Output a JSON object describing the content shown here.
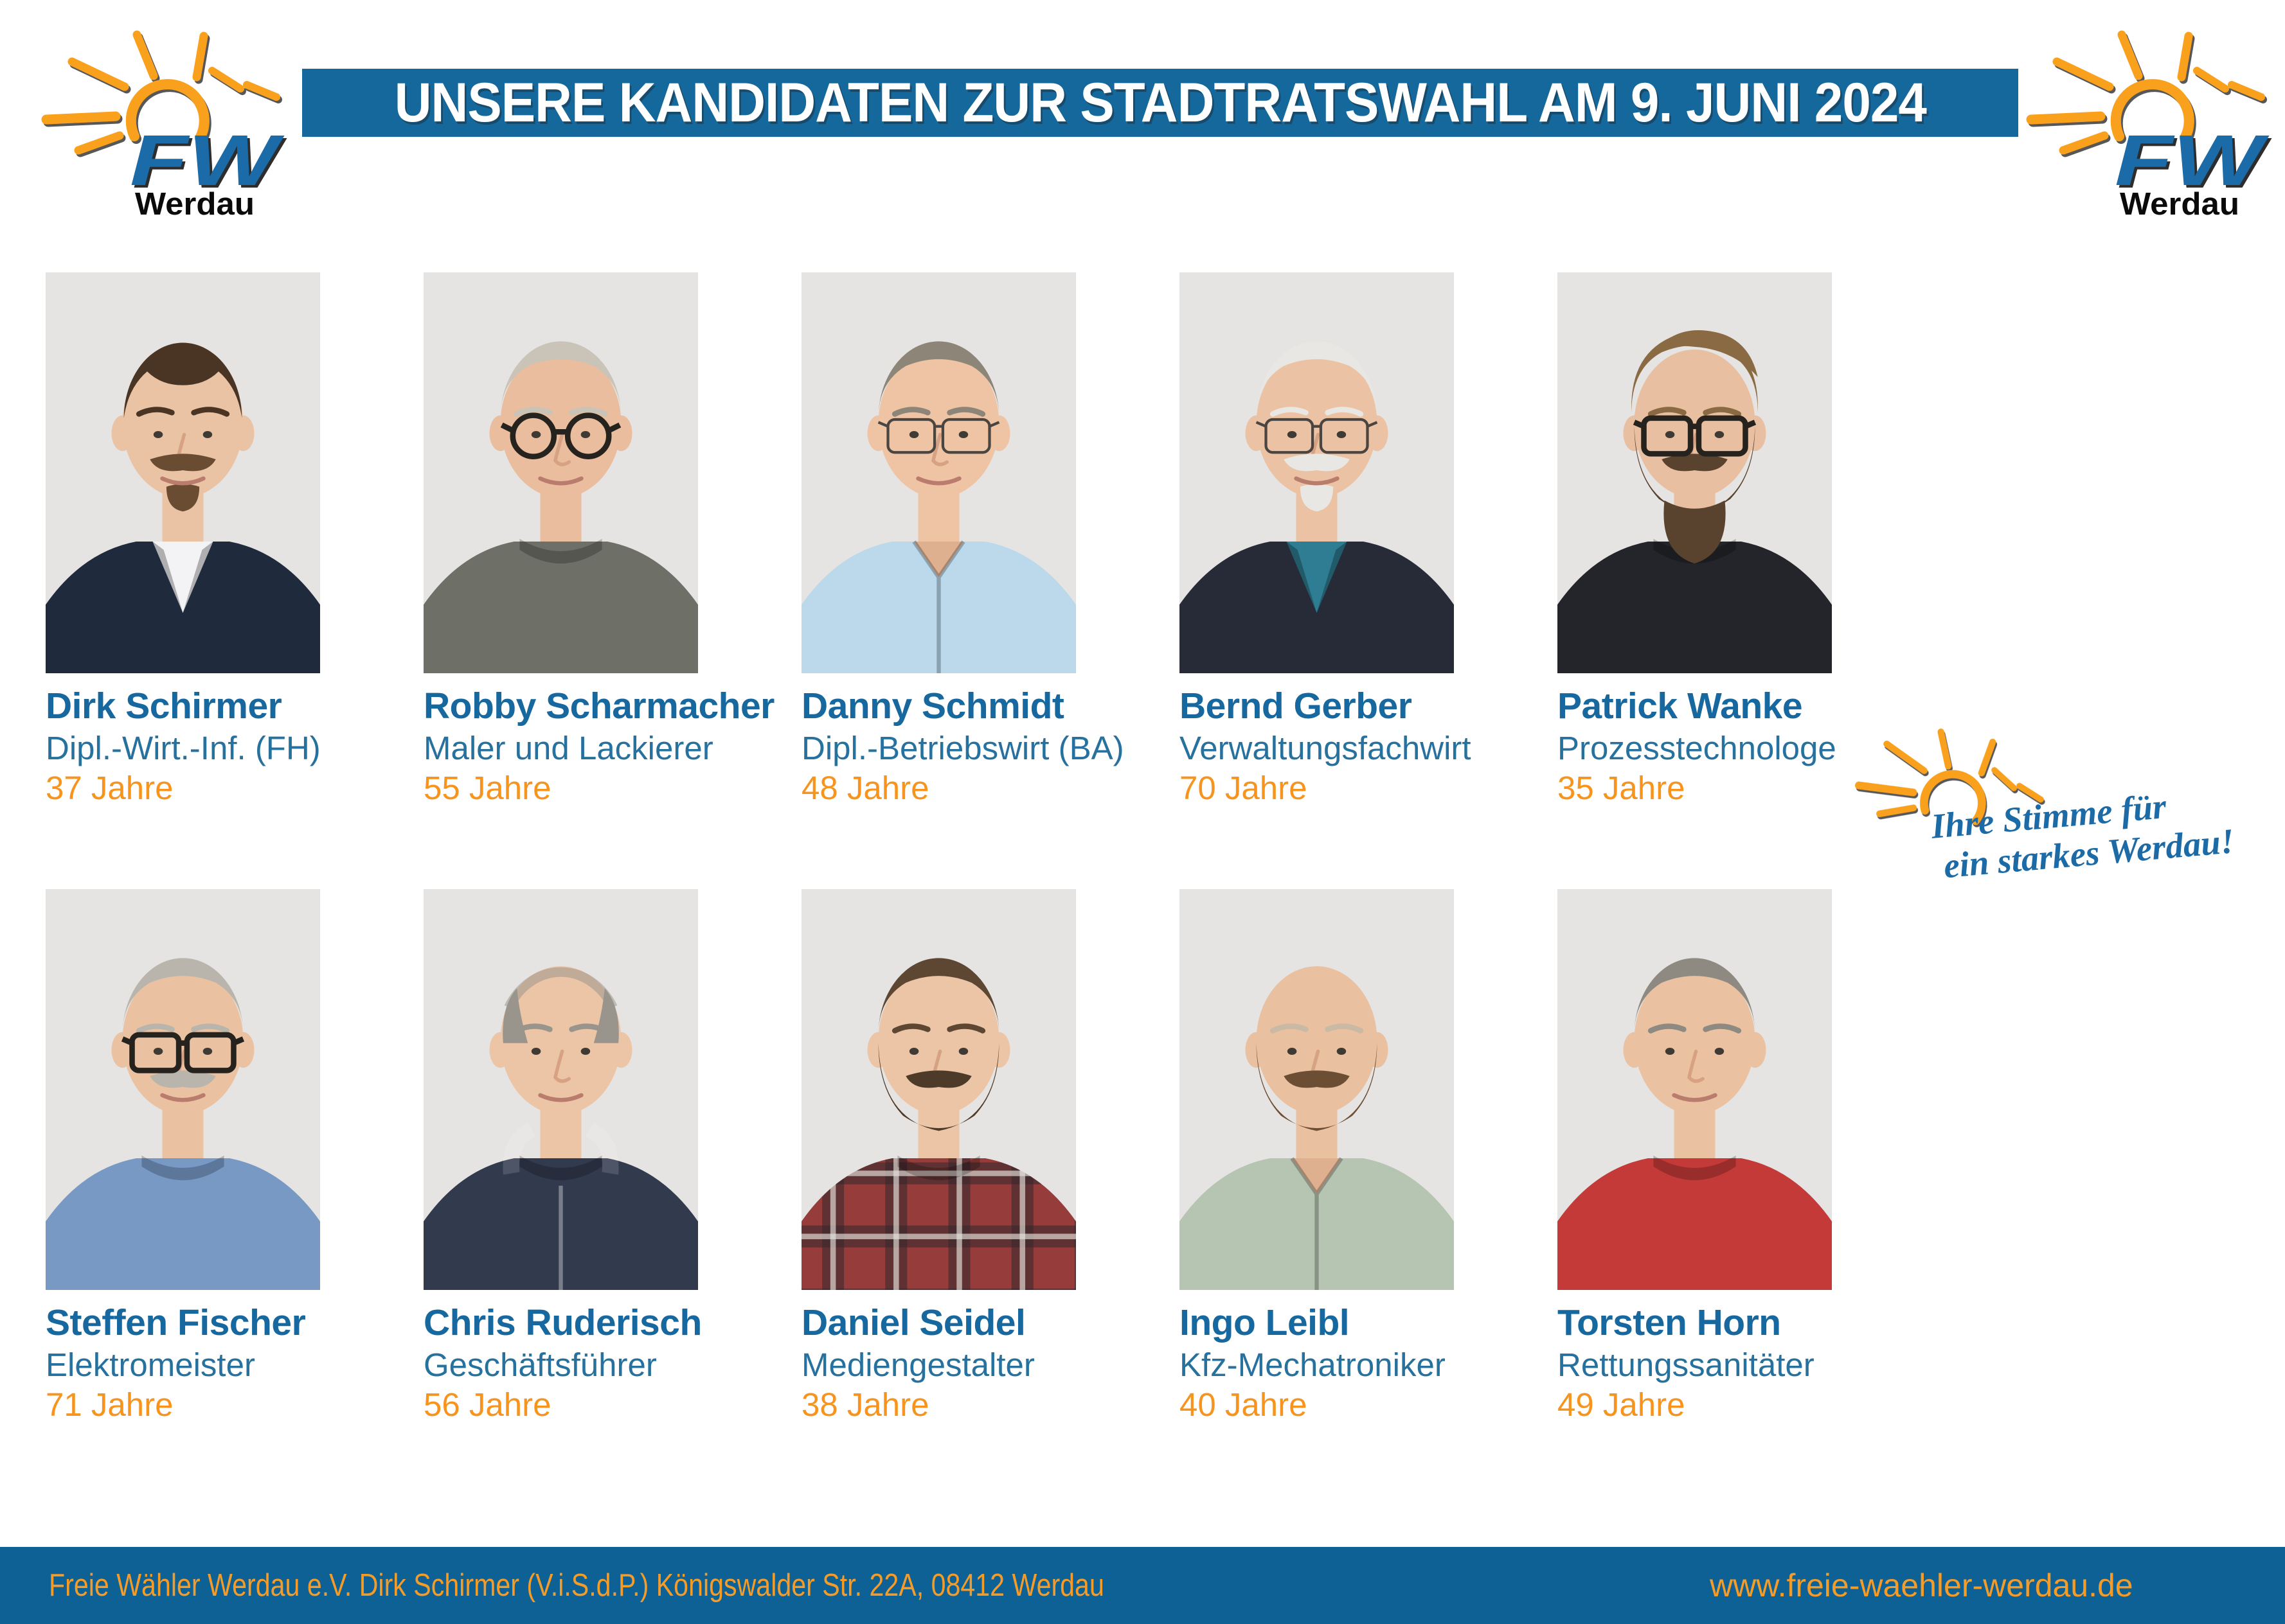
{
  "header": {
    "title": "UNSERE KANDIDATEN ZUR STADTRATSWAHL AM 9. JUNI 2024"
  },
  "logo": {
    "fw": "FW",
    "city": "Werdau",
    "icon": "sun-rays-icon"
  },
  "slogan": {
    "line1": "Ihre Stimme für",
    "line2": "ein starkes Werdau!"
  },
  "colors": {
    "banner_blue": "#15689c",
    "footer_blue": "#0d6195",
    "name_blue": "#17689f",
    "profession_blue": "#26719e",
    "accent_orange": "#f7941e",
    "sun_orange": "#f9a11b",
    "fw_logo_blue": "#1a6ba8",
    "photo_background": "#e6e4e2"
  },
  "candidates": [
    {
      "name": "Dirk Schirmer",
      "profession": "Dipl.-Wirt.-Inf. (FH)",
      "age": "37 Jahre",
      "photo": {
        "hair": "receding",
        "hairColor": "#4a3423",
        "beard": "goatee",
        "beardColor": "#6a4c33",
        "glasses": "none",
        "top": "blazer",
        "topColor": "#1f2a3d",
        "shirtColor": "#f3f3f5",
        "skin": "#eac3a4"
      }
    },
    {
      "name": "Robby Scharmacher",
      "profession": "Maler und Lackierer",
      "age": "55 Jahre",
      "photo": {
        "hair": "short",
        "hairColor": "#c9c3b8",
        "beard": "none",
        "beardColor": "#c9c3b8",
        "glasses": "round",
        "top": "crew",
        "topColor": "#6e6f66",
        "shirtColor": "#6e6f66",
        "skin": "#e9bd9d"
      }
    },
    {
      "name": "Danny Schmidt",
      "profession": "Dipl.-Betriebswirt (BA)",
      "age": "48 Jahre",
      "photo": {
        "hair": "short",
        "hairColor": "#8c8578",
        "beard": "none",
        "beardColor": "#8c8578",
        "glasses": "thin",
        "top": "shirt",
        "topColor": "#bcd9ec",
        "shirtColor": "#bcd9ec",
        "skin": "#eec4a4"
      }
    },
    {
      "name": "Bernd Gerber",
      "profession": "Verwaltungsfachwirt",
      "age": "70 Jahre",
      "photo": {
        "hair": "short",
        "hairColor": "#e9e7e3",
        "beard": "goatee",
        "beardColor": "#e9e7e3",
        "glasses": "thin",
        "top": "blazer",
        "topColor": "#272b38",
        "shirtColor": "#2e7d92",
        "skin": "#ebc3a4"
      }
    },
    {
      "name": "Patrick Wanke",
      "profession": "Prozesstechnologe",
      "age": "35 Jahre",
      "photo": {
        "hair": "quiff",
        "hairColor": "#8a6a42",
        "beard": "long",
        "beardColor": "#59422e",
        "glasses": "rect",
        "top": "crew",
        "topColor": "#23252a",
        "shirtColor": "#23252a",
        "skin": "#e8bfa0"
      }
    },
    {
      "name": "Steffen Fischer",
      "profession": "Elektromeister",
      "age": "71 Jahre",
      "photo": {
        "hair": "short",
        "hairColor": "#b9b5ac",
        "beard": "mustache",
        "beardColor": "#b9b5ac",
        "glasses": "rect",
        "top": "crew",
        "topColor": "#7799c4",
        "shirtColor": "#7799c4",
        "skin": "#eac2a2"
      }
    },
    {
      "name": "Chris Ruderisch",
      "profession": "Geschäftsführer",
      "age": "56 Jahre",
      "photo": {
        "hair": "balding",
        "hairColor": "#9a958c",
        "beard": "none",
        "beardColor": "#9a958c",
        "glasses": "none",
        "top": "hoodie",
        "topColor": "#323a4e",
        "shirtColor": "#323a4e",
        "skin": "#ecc5a6"
      }
    },
    {
      "name": "Daniel Seidel",
      "profession": "Mediengestalter",
      "age": "38 Jahre",
      "photo": {
        "hair": "short",
        "hairColor": "#5d4732",
        "beard": "full",
        "beardColor": "#4e3a29",
        "glasses": "none",
        "top": "plaid",
        "topColor": "#963d3c",
        "shirtColor": "#963d3c",
        "skin": "#ecc5a6"
      }
    },
    {
      "name": "Ingo Leibl",
      "profession": "Kfz-Mechatroniker",
      "age": "40 Jahre",
      "photo": {
        "hair": "bald",
        "hairColor": "#c9b9a5",
        "beard": "full",
        "beardColor": "#6b4e33",
        "glasses": "none",
        "top": "shirt",
        "topColor": "#b6c4b2",
        "shirtColor": "#b6c4b2",
        "skin": "#e9c0a0"
      }
    },
    {
      "name": "Torsten Horn",
      "profession": "Rettungssanitäter",
      "age": "49 Jahre",
      "photo": {
        "hair": "short",
        "hairColor": "#8e8a82",
        "beard": "none",
        "beardColor": "#8e8a82",
        "glasses": "none",
        "top": "crew",
        "topColor": "#c43a38",
        "shirtColor": "#c43a38",
        "skin": "#eac2a2"
      }
    }
  ],
  "footer": {
    "left": "Freie Wähler Werdau e.V.  Dirk Schirmer (V.i.S.d.P.) Königswalder Str. 22A, 08412 Werdau",
    "right": "www.freie-waehler-werdau.de"
  }
}
